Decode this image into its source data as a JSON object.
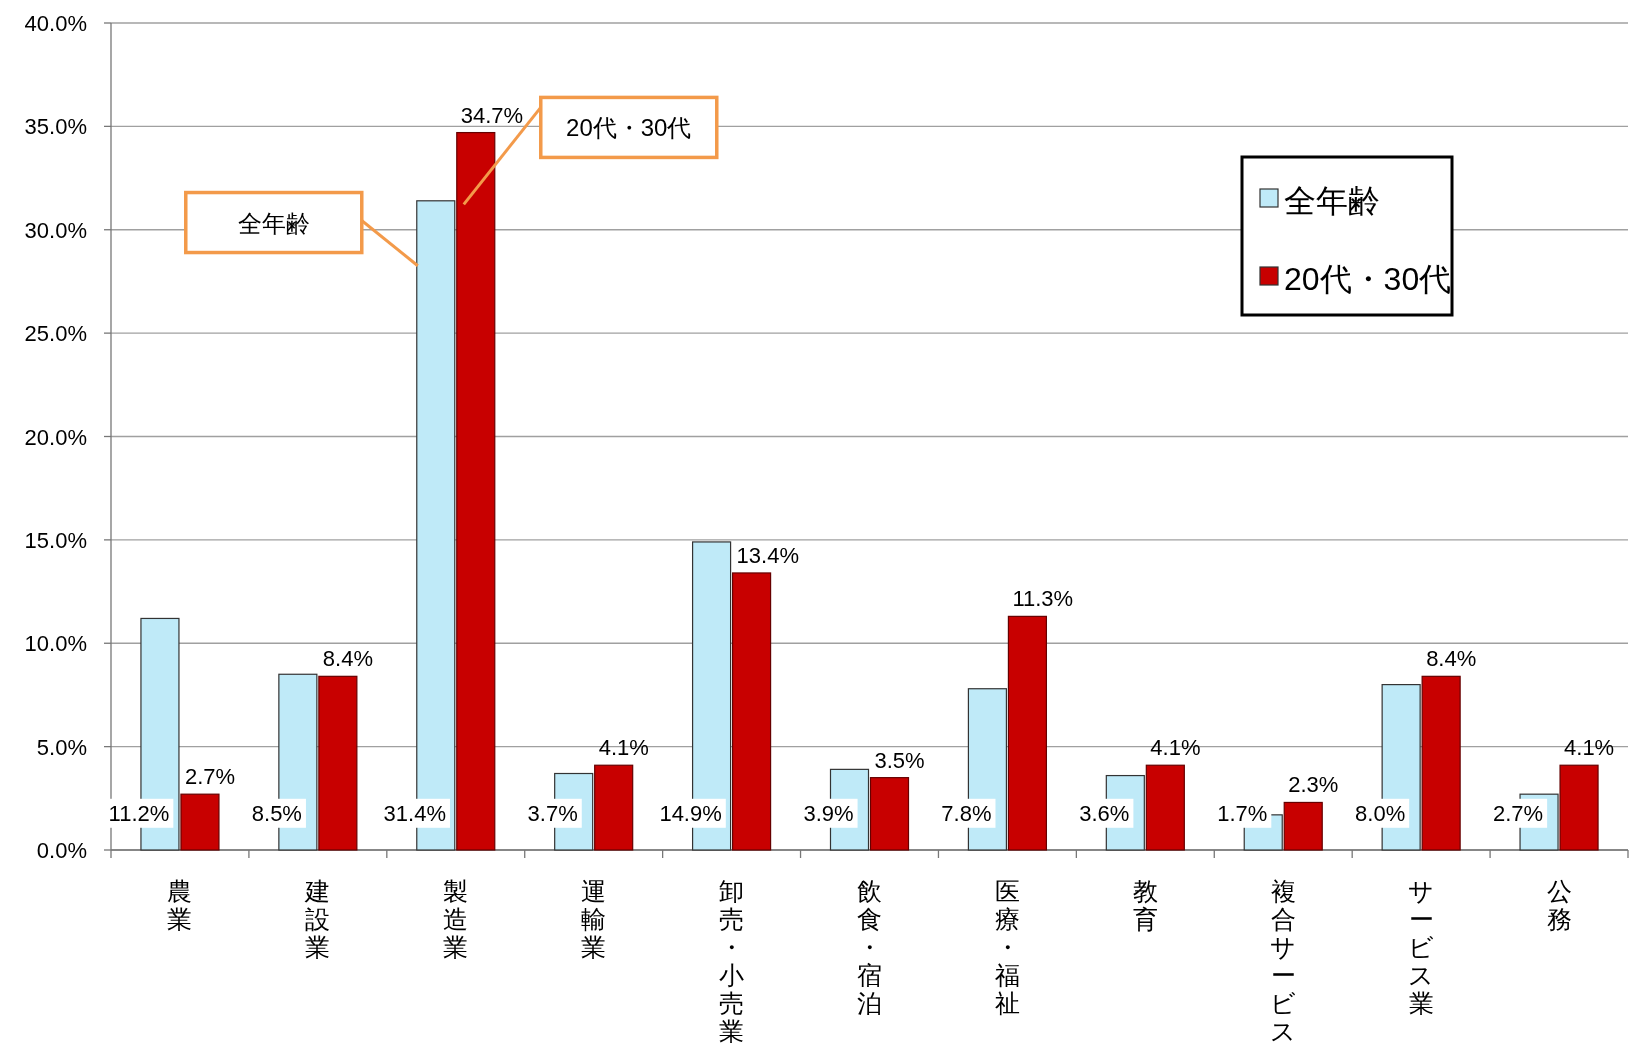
{
  "chart_data": {
    "type": "bar",
    "categories": [
      "農業",
      "建設業",
      "製造業",
      "運輸業",
      "卸売・小売業",
      "飲食・宿泊",
      "医療・福祉",
      "教育",
      "複合サービス",
      "サービス業",
      "公務"
    ],
    "series": [
      {
        "name": "全年齢",
        "color": "#bfeaf8",
        "values": [
          11.2,
          8.5,
          31.4,
          3.7,
          14.9,
          3.9,
          7.8,
          3.6,
          1.7,
          8.0,
          2.7
        ],
        "value_labels": [
          "11.2%",
          "8.5%",
          "31.4%",
          "3.7%",
          "14.9%",
          "3.9%",
          "7.8%",
          "3.6%",
          "1.7%",
          "8.0%",
          "2.7%"
        ]
      },
      {
        "name": "20代・30代",
        "color": "#c80000",
        "values": [
          2.7,
          8.4,
          34.7,
          4.1,
          13.4,
          3.5,
          11.3,
          4.1,
          2.3,
          8.4,
          4.1
        ],
        "value_labels": [
          "2.7%",
          "8.4%",
          "34.7%",
          "4.1%",
          "13.4%",
          "3.5%",
          "11.3%",
          "4.1%",
          "2.3%",
          "8.4%",
          "4.1%"
        ]
      }
    ],
    "ylim": [
      0,
      40
    ],
    "yticks": [
      {
        "value": 0,
        "label": "0.0%"
      },
      {
        "value": 5,
        "label": "5.0%"
      },
      {
        "value": 10,
        "label": "10.0%"
      },
      {
        "value": 15,
        "label": "15.0%"
      },
      {
        "value": 20,
        "label": "20.0%"
      },
      {
        "value": 25,
        "label": "25.0%"
      },
      {
        "value": 30,
        "label": "30.0%"
      },
      {
        "value": 35,
        "label": "35.0%"
      },
      {
        "value": 40,
        "label": "40.0%"
      }
    ],
    "grid": "y",
    "legend": "top right",
    "annotations": [
      "全年齢",
      "20代・30代"
    ]
  }
}
